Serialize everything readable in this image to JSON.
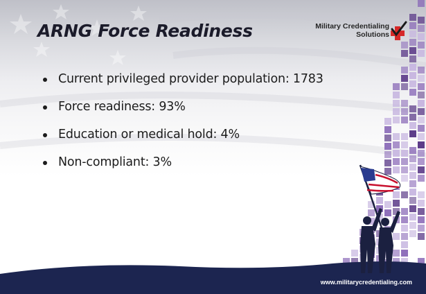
{
  "slide": {
    "title": "ARNG Force Readiness",
    "logo": {
      "line1": "Military Credentialing",
      "line2": "Solutions",
      "icon": "red-check-cross-icon"
    },
    "bullets": [
      "Current privileged provider population: 1783",
      "Force readiness: 93%",
      "Education or medical hold: 4%",
      "Non-compliant: 3%"
    ],
    "footer_url": "www.militarycredentialing.com"
  },
  "colors": {
    "mosaic_purple_dark": "#5b3a88",
    "mosaic_purple_mid": "#8b6bb8",
    "mosaic_purple_light": "#c7b6e0",
    "ground_navy": "#1c2550",
    "accent_red": "#d62828"
  }
}
